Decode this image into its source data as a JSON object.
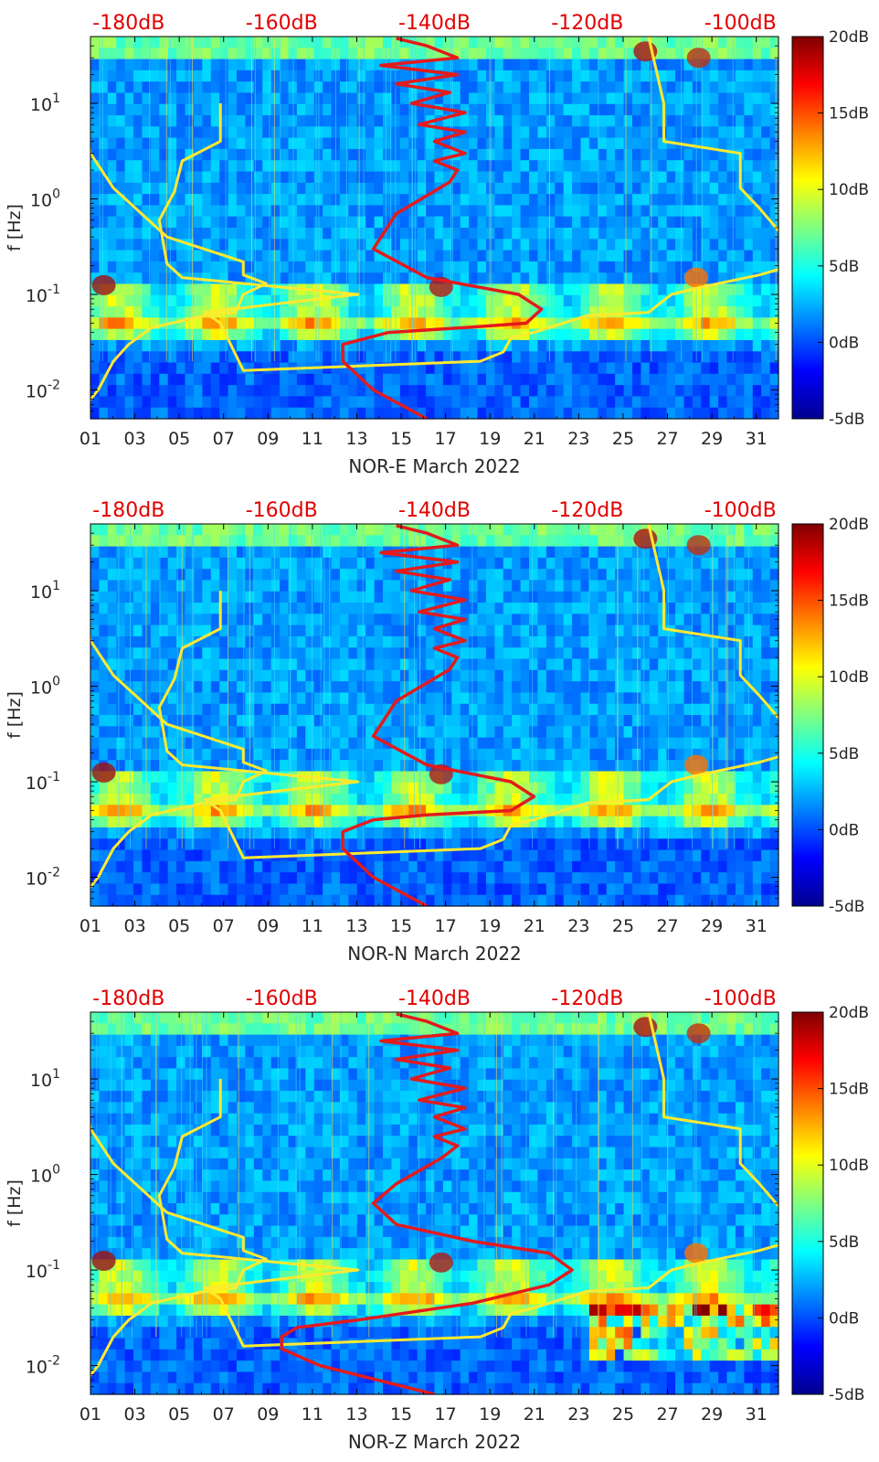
{
  "colors": {
    "background_cmap": [
      "#00008f",
      "#0000ff",
      "#0080ff",
      "#00ffff",
      "#80ff80",
      "#ffff00",
      "#ff8000",
      "#ff0000",
      "#800000"
    ],
    "median_curve": "#e41a1c",
    "nlnm_nhnm": "#ffea2e",
    "db_scale_text": "#e30000"
  },
  "chart_data": [
    {
      "type": "heatmap",
      "xlabel": "NOR-E March 2022",
      "ylabel": "f [Hz]",
      "x_ticks": [
        "01",
        "03",
        "05",
        "07",
        "09",
        "11",
        "13",
        "15",
        "17",
        "19",
        "21",
        "23",
        "25",
        "27",
        "29",
        "31"
      ],
      "x_range": [
        1,
        32
      ],
      "y_scale": "log",
      "y_range": [
        0.005,
        50
      ],
      "y_ticks": [
        {
          "value": 0.01,
          "base": "10",
          "exp": "-2"
        },
        {
          "value": 0.1,
          "base": "10",
          "exp": "-1"
        },
        {
          "value": 1,
          "base": "10",
          "exp": "0"
        },
        {
          "value": 10,
          "base": "10",
          "exp": "1"
        }
      ],
      "top_axis_labels": [
        "-180dB",
        "-160dB",
        "-140dB",
        "-120dB",
        "-100dB"
      ],
      "top_axis_range": [
        -185,
        -95
      ],
      "colorbar": {
        "range": [
          -5,
          20
        ],
        "ticks": [
          "20dB",
          "15dB",
          "10dB",
          "5dB",
          "0dB",
          "-5dB"
        ]
      },
      "series": [
        {
          "x": [
            -112,
            -110,
            -110,
            -100,
            -100,
            -97.5,
            -91.5,
            -97.5,
            -105,
            -109,
            -112,
            -120,
            -127,
            -130,
            -131,
            -134,
            -165,
            -168,
            -170,
            -150,
            -173,
            -175,
            -176,
            -174,
            -173,
            -168,
            -168
          ],
          "y": [
            50,
            10,
            4,
            3,
            1.3,
            0.8,
            0.22,
            0.16,
            0.12,
            0.1,
            0.065,
            0.06,
            0.04,
            0.035,
            0.025,
            0.02,
            0.016,
            0.05,
            0.065,
            0.1,
            0.15,
            0.21,
            0.6,
            1.2,
            2.5,
            4,
            10
          ]
        },
        {
          "x": [
            -187,
            -184,
            -182,
            -180,
            -177,
            -170,
            -166,
            -165,
            -162,
            -165,
            -165,
            -175,
            -182,
            -185,
            -186
          ],
          "y": [
            0.005,
            0.01,
            0.02,
            0.03,
            0.045,
            0.06,
            0.065,
            0.1,
            0.13,
            0.16,
            0.22,
            0.4,
            1.3,
            3,
            10
          ]
        },
        {
          "x": [
            -141,
            -148,
            -152,
            -152,
            -146,
            -136,
            -128,
            -126,
            -129,
            -141,
            -148,
            -145,
            -138,
            -137,
            -140,
            -136,
            -140,
            -136,
            -142,
            -136,
            -143,
            -138,
            -145,
            -137,
            -147,
            -137,
            -141,
            -145
          ],
          "y": [
            0.005,
            0.01,
            0.02,
            0.03,
            0.04,
            0.045,
            0.05,
            0.07,
            0.1,
            0.15,
            0.3,
            0.7,
            1.5,
            2,
            2.5,
            3,
            4,
            5,
            6,
            8,
            10,
            13,
            16,
            20,
            25,
            30,
            40,
            48
          ]
        }
      ]
    },
    {
      "type": "heatmap",
      "xlabel": "NOR-N March 2022",
      "ylabel": "f [Hz]",
      "x_ticks": [
        "01",
        "03",
        "05",
        "07",
        "09",
        "11",
        "13",
        "15",
        "17",
        "19",
        "21",
        "23",
        "25",
        "27",
        "29",
        "31"
      ],
      "x_range": [
        1,
        32
      ],
      "y_scale": "log",
      "y_range": [
        0.005,
        50
      ],
      "y_ticks": [
        {
          "value": 0.01,
          "base": "10",
          "exp": "-2"
        },
        {
          "value": 0.1,
          "base": "10",
          "exp": "-1"
        },
        {
          "value": 1,
          "base": "10",
          "exp": "0"
        },
        {
          "value": 10,
          "base": "10",
          "exp": "1"
        }
      ],
      "top_axis_labels": [
        "-180dB",
        "-160dB",
        "-140dB",
        "-120dB",
        "-100dB"
      ],
      "top_axis_range": [
        -185,
        -95
      ],
      "colorbar": {
        "range": [
          -5,
          20
        ],
        "ticks": [
          "20dB",
          "15dB",
          "10dB",
          "5dB",
          "0dB",
          "-5dB"
        ]
      },
      "series": [
        {
          "x": [
            -112,
            -110,
            -110,
            -100,
            -100,
            -97.5,
            -91.5,
            -97.5,
            -105,
            -109,
            -112,
            -120,
            -127,
            -130,
            -131,
            -134,
            -165,
            -168,
            -170,
            -150,
            -173,
            -175,
            -176,
            -174,
            -173,
            -168,
            -168
          ],
          "y": [
            50,
            10,
            4,
            3,
            1.3,
            0.8,
            0.22,
            0.16,
            0.12,
            0.1,
            0.065,
            0.06,
            0.04,
            0.035,
            0.025,
            0.02,
            0.016,
            0.05,
            0.065,
            0.1,
            0.15,
            0.21,
            0.6,
            1.2,
            2.5,
            4,
            10
          ]
        },
        {
          "x": [
            -187,
            -184,
            -182,
            -180,
            -177,
            -170,
            -166,
            -165,
            -162,
            -165,
            -165,
            -175,
            -182,
            -185,
            -186
          ],
          "y": [
            0.005,
            0.01,
            0.02,
            0.03,
            0.045,
            0.06,
            0.065,
            0.1,
            0.13,
            0.16,
            0.22,
            0.4,
            1.3,
            3,
            10
          ]
        },
        {
          "x": [
            -141,
            -148,
            -152,
            -152,
            -148,
            -141,
            -130,
            -127,
            -130,
            -141,
            -148,
            -145,
            -138,
            -137,
            -140,
            -136,
            -140,
            -136,
            -142,
            -136,
            -143,
            -138,
            -145,
            -137,
            -147,
            -137,
            -141,
            -145
          ],
          "y": [
            0.005,
            0.01,
            0.02,
            0.03,
            0.04,
            0.045,
            0.05,
            0.07,
            0.1,
            0.15,
            0.3,
            0.7,
            1.5,
            2,
            2.5,
            3,
            4,
            5,
            6,
            8,
            10,
            13,
            16,
            20,
            25,
            30,
            40,
            48
          ]
        }
      ]
    },
    {
      "type": "heatmap",
      "xlabel": "NOR-Z March 2022",
      "ylabel": "f [Hz]",
      "x_ticks": [
        "01",
        "03",
        "05",
        "07",
        "09",
        "11",
        "13",
        "15",
        "17",
        "19",
        "21",
        "23",
        "25",
        "27",
        "29",
        "31"
      ],
      "x_range": [
        1,
        32
      ],
      "y_scale": "log",
      "y_range": [
        0.005,
        50
      ],
      "y_ticks": [
        {
          "value": 0.01,
          "base": "10",
          "exp": "-2"
        },
        {
          "value": 0.1,
          "base": "10",
          "exp": "-1"
        },
        {
          "value": 1,
          "base": "10",
          "exp": "0"
        },
        {
          "value": 10,
          "base": "10",
          "exp": "1"
        }
      ],
      "top_axis_labels": [
        "-180dB",
        "-160dB",
        "-140dB",
        "-120dB",
        "-100dB"
      ],
      "top_axis_range": [
        -185,
        -95
      ],
      "colorbar": {
        "range": [
          -5,
          20
        ],
        "ticks": [
          "20dB",
          "15dB",
          "10dB",
          "5dB",
          "0dB",
          "-5dB"
        ]
      },
      "series": [
        {
          "x": [
            -112,
            -110,
            -110,
            -100,
            -100,
            -97.5,
            -91.5,
            -97.5,
            -105,
            -109,
            -112,
            -120,
            -127,
            -130,
            -131,
            -134,
            -165,
            -168,
            -170,
            -150,
            -173,
            -175,
            -176,
            -174,
            -173,
            -168,
            -168
          ],
          "y": [
            50,
            10,
            4,
            3,
            1.3,
            0.8,
            0.22,
            0.16,
            0.12,
            0.1,
            0.065,
            0.06,
            0.04,
            0.035,
            0.025,
            0.02,
            0.016,
            0.05,
            0.065,
            0.1,
            0.15,
            0.21,
            0.6,
            1.2,
            2.5,
            4,
            10
          ]
        },
        {
          "x": [
            -187,
            -184,
            -182,
            -180,
            -177,
            -170,
            -166,
            -165,
            -162,
            -165,
            -165,
            -175,
            -182,
            -185,
            -186
          ],
          "y": [
            0.005,
            0.01,
            0.02,
            0.03,
            0.045,
            0.06,
            0.065,
            0.1,
            0.13,
            0.16,
            0.22,
            0.4,
            1.3,
            3,
            10
          ]
        },
        {
          "x": [
            -140,
            -155,
            -160,
            -160,
            -158,
            -150,
            -135,
            -125,
            -122,
            -125,
            -135,
            -145,
            -148,
            -145,
            -139,
            -137,
            -140,
            -136,
            -140,
            -136,
            -142,
            -136,
            -143,
            -138,
            -145,
            -137,
            -147,
            -137,
            -141,
            -145
          ],
          "y": [
            0.005,
            0.01,
            0.015,
            0.02,
            0.025,
            0.03,
            0.045,
            0.07,
            0.1,
            0.15,
            0.2,
            0.3,
            0.5,
            0.8,
            1.5,
            2,
            2.5,
            3,
            4,
            5,
            6,
            8,
            10,
            13,
            16,
            20,
            25,
            30,
            40,
            48
          ]
        }
      ]
    }
  ]
}
